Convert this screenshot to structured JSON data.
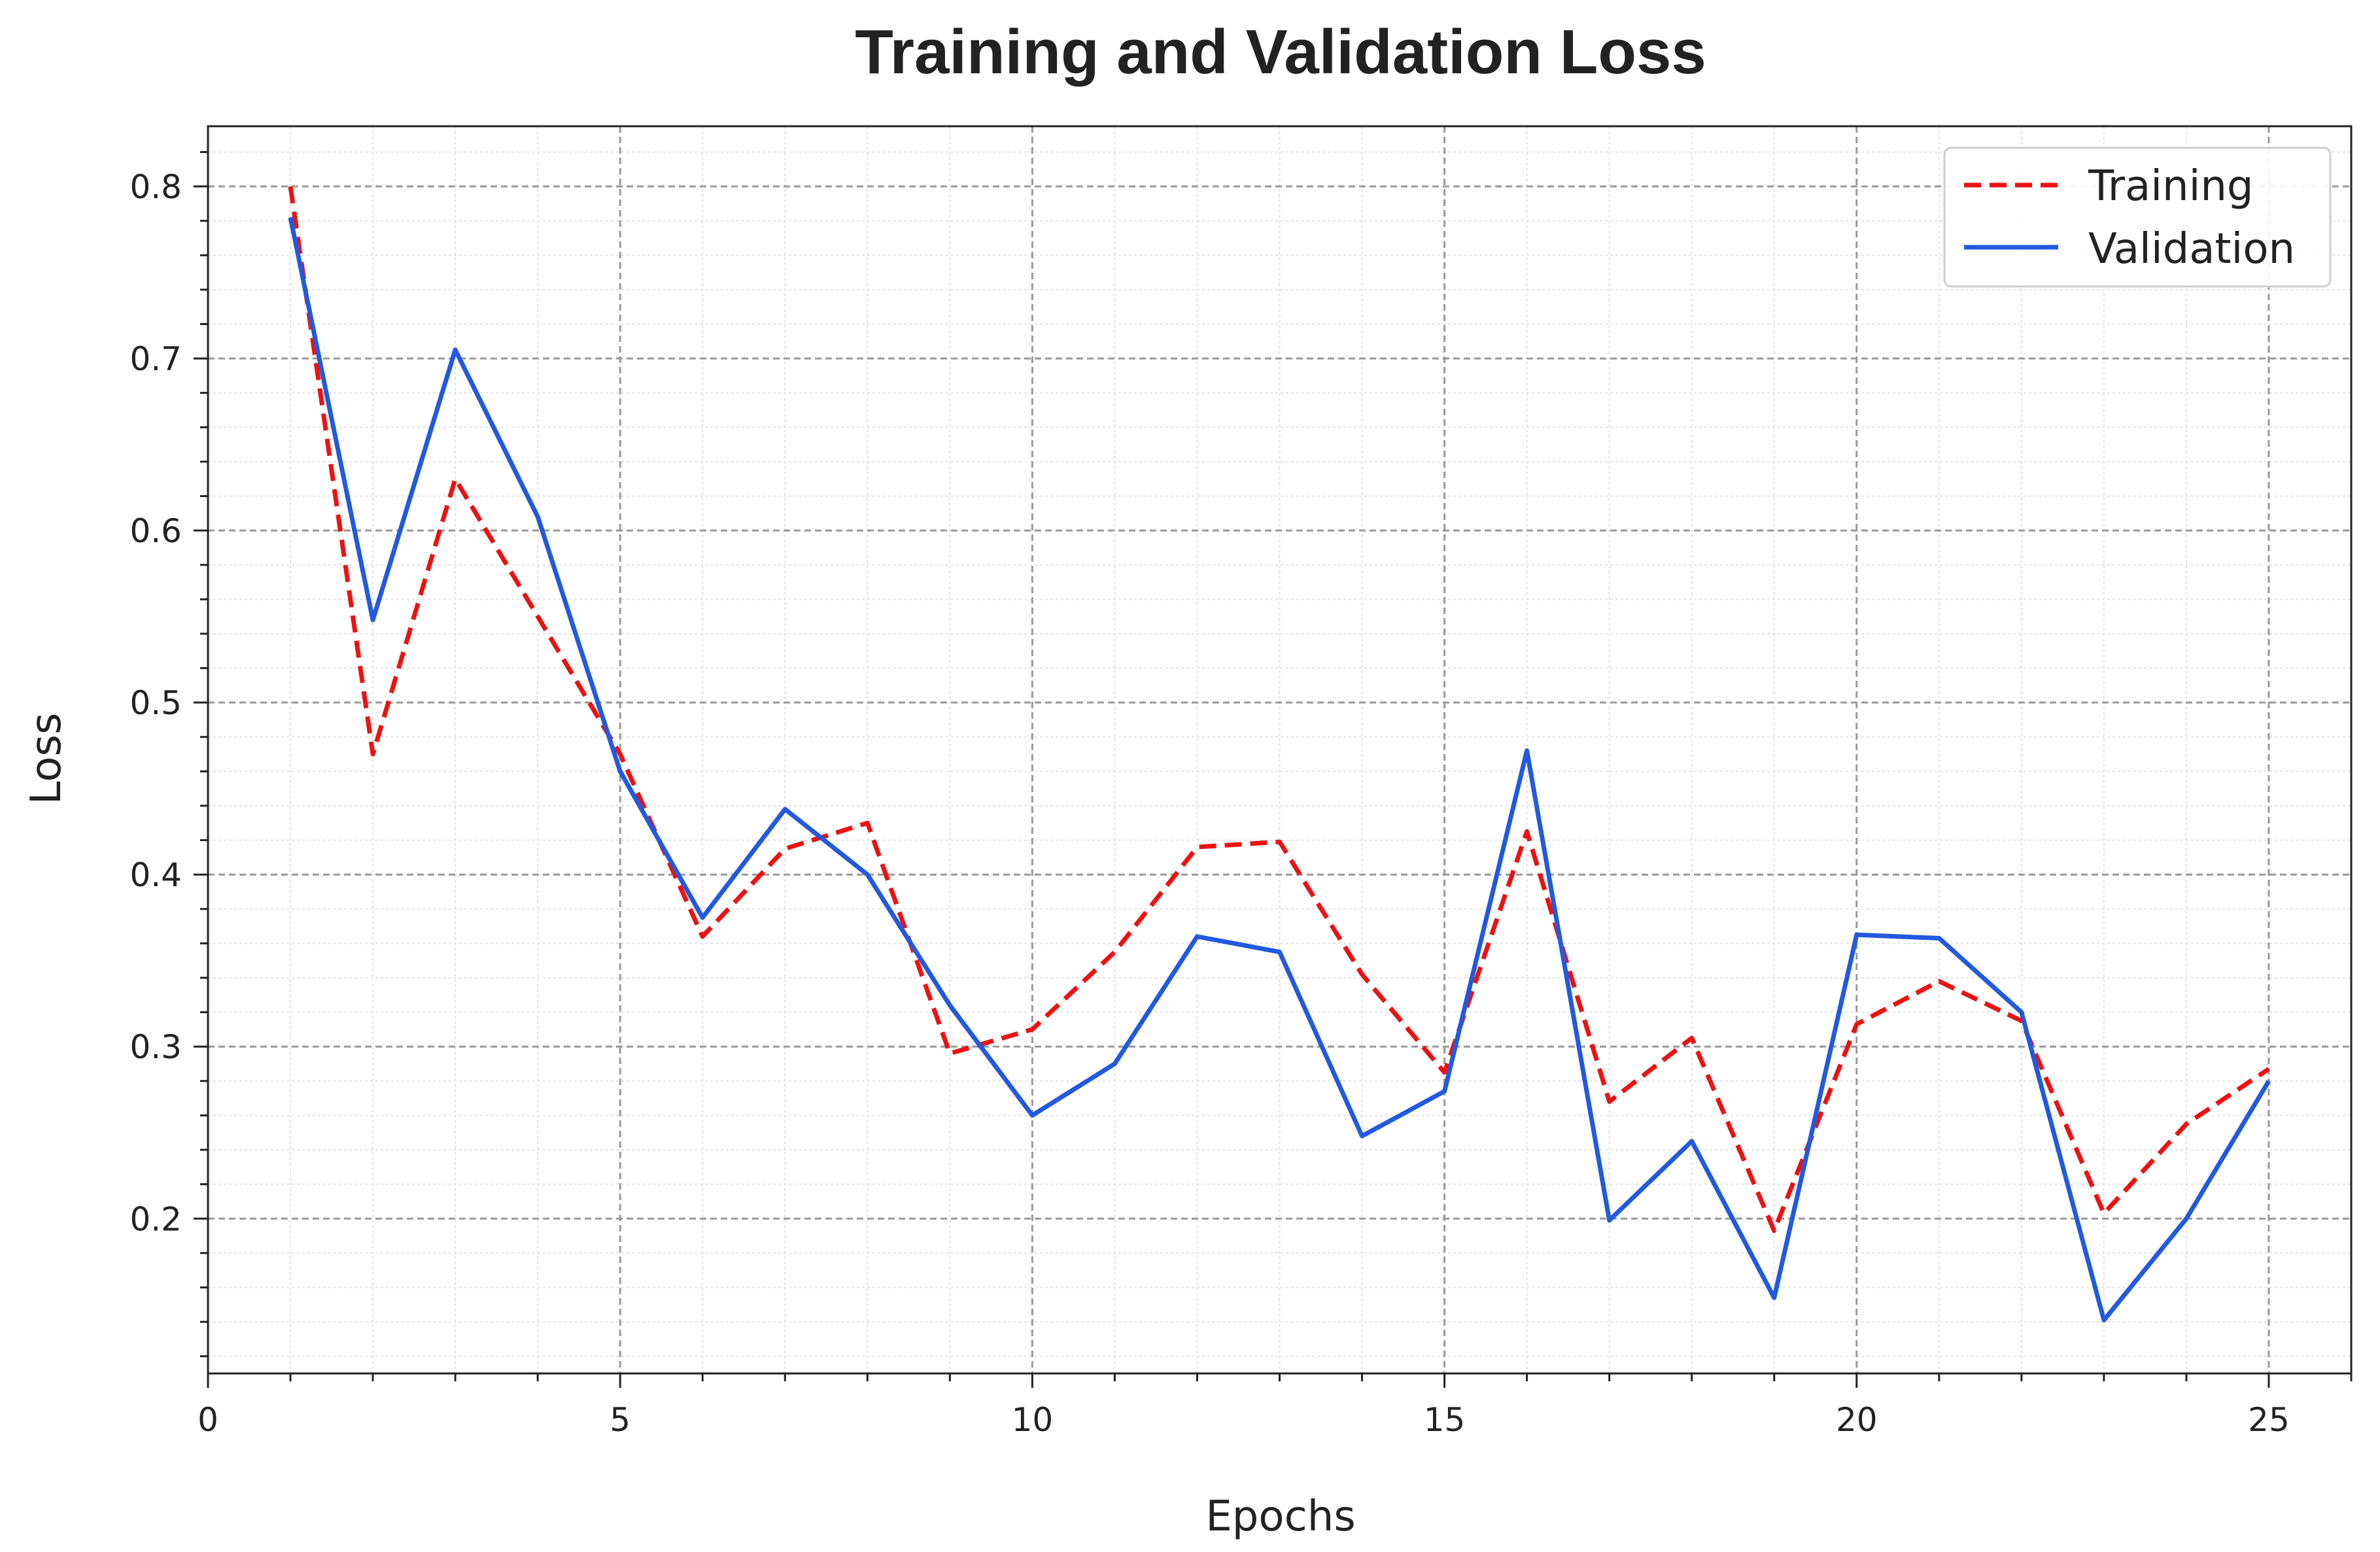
{
  "chart_data": {
    "type": "line",
    "title": "Training and Validation Loss",
    "xlabel": "Epochs",
    "ylabel": "Loss",
    "xlim": [
      0,
      26
    ],
    "ylim": [
      0.11,
      0.835
    ],
    "xticks": [
      0,
      5,
      10,
      15,
      20,
      25
    ],
    "yticks": [
      0.2,
      0.3,
      0.4,
      0.5,
      0.6,
      0.7,
      0.8
    ],
    "ytick_labels": [
      "0.2",
      "0.3",
      "0.4",
      "0.5",
      "0.6",
      "0.7",
      "0.8"
    ],
    "grid": true,
    "legend_position": "top-right",
    "x": [
      1,
      2,
      3,
      4,
      5,
      6,
      7,
      8,
      9,
      10,
      11,
      12,
      13,
      14,
      15,
      16,
      17,
      18,
      19,
      20,
      21,
      22,
      23,
      24,
      25
    ],
    "series": [
      {
        "name": "Training",
        "color": "#ee1111",
        "style": "dashed",
        "values": [
          0.8,
          0.47,
          0.63,
          0.55,
          0.47,
          0.364,
          0.415,
          0.43,
          0.296,
          0.31,
          0.355,
          0.416,
          0.419,
          0.342,
          0.285,
          0.425,
          0.268,
          0.305,
          0.193,
          0.313,
          0.338,
          0.315,
          0.203,
          0.255,
          0.287
        ]
      },
      {
        "name": "Validation",
        "color": "#2259e0",
        "style": "solid",
        "values": [
          0.782,
          0.548,
          0.705,
          0.608,
          0.46,
          0.375,
          0.438,
          0.4,
          0.324,
          0.26,
          0.29,
          0.364,
          0.355,
          0.248,
          0.274,
          0.472,
          0.199,
          0.245,
          0.154,
          0.365,
          0.363,
          0.32,
          0.141,
          0.2,
          0.28
        ]
      }
    ]
  }
}
